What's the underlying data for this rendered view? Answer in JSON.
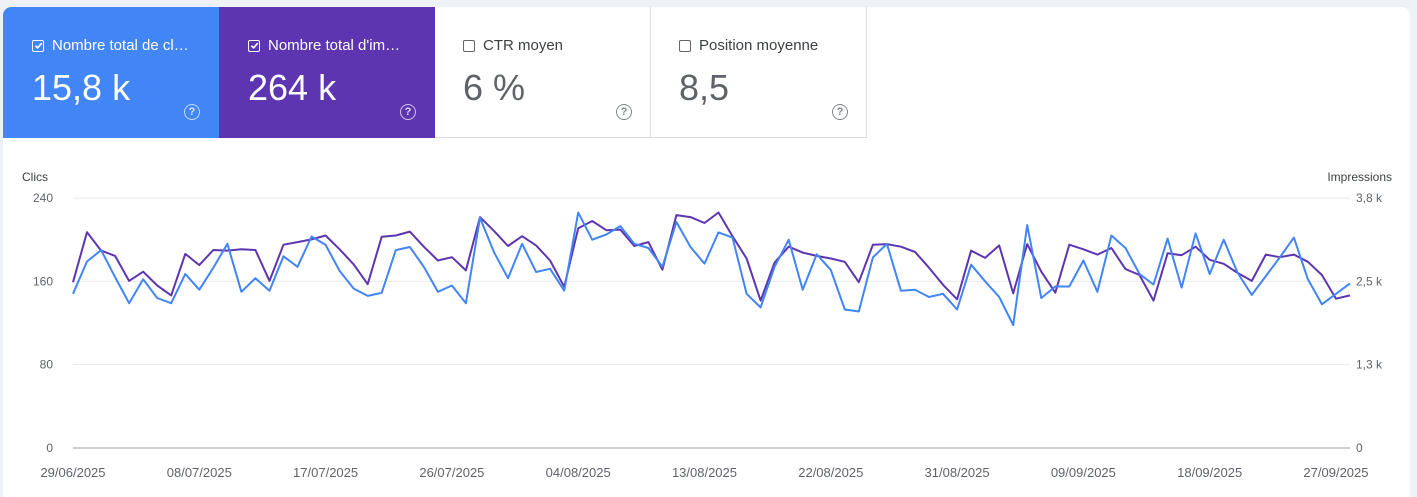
{
  "metrics": [
    {
      "label": "Nombre total de clics",
      "value": "15,8 k",
      "checked": true,
      "color": "#4285f4"
    },
    {
      "label": "Nombre total d'impressions",
      "value": "264 k",
      "checked": true,
      "color": "#5e35b1"
    },
    {
      "label": "CTR moyen",
      "value": "6 %",
      "checked": false
    },
    {
      "label": "Position moyenne",
      "value": "8,5",
      "checked": false
    }
  ],
  "help_glyph": "?",
  "chart_data": {
    "type": "line",
    "left_axis_title": "Clics",
    "right_axis_title": "Impressions",
    "left_ticks": [
      "0",
      "80",
      "160",
      "240"
    ],
    "right_ticks": [
      "0",
      "1,3 k",
      "2,5 k",
      "3,8 k"
    ],
    "ylim_left": [
      0,
      240
    ],
    "ylim_right": [
      0,
      3800
    ],
    "x_labels": [
      "29/06/2025",
      "08/07/2025",
      "17/07/2025",
      "26/07/2025",
      "04/08/2025",
      "13/08/2025",
      "22/08/2025",
      "31/08/2025",
      "09/09/2025",
      "18/09/2025",
      "27/09/2025"
    ],
    "x_start": "2025-06-29",
    "x_end": "2025-09-28",
    "series": [
      {
        "metric": "clics",
        "axis": "left",
        "color": "#4285f4",
        "values": [
          148,
          179,
          190,
          164,
          139,
          162,
          144,
          139,
          167,
          152,
          173,
          196,
          150,
          163,
          151,
          184,
          174,
          203,
          195,
          170,
          153,
          146,
          149,
          190,
          193,
          174,
          150,
          156,
          139,
          221,
          188,
          163,
          196,
          169,
          172,
          151,
          226,
          200,
          205,
          213,
          196,
          192,
          174,
          217,
          193,
          177,
          207,
          202,
          148,
          135,
          174,
          200,
          152,
          186,
          171,
          133,
          131,
          183,
          196,
          151,
          152,
          145,
          148,
          133,
          176,
          160,
          145,
          118,
          214,
          144,
          155,
          155,
          180,
          150,
          204,
          192,
          167,
          157,
          201,
          154,
          206,
          167,
          200,
          168,
          147,
          165,
          183,
          202,
          162,
          138,
          148,
          158
        ]
      },
      {
        "metric": "impressions",
        "axis": "right",
        "color": "#5e35b1",
        "values": [
          2520,
          3280,
          3000,
          2920,
          2540,
          2680,
          2470,
          2320,
          2950,
          2780,
          3010,
          3000,
          3020,
          3010,
          2540,
          3090,
          3130,
          3170,
          3230,
          3020,
          2790,
          2490,
          3210,
          3230,
          3290,
          3060,
          2850,
          2900,
          2700,
          3510,
          3300,
          3070,
          3220,
          3080,
          2850,
          2450,
          3340,
          3450,
          3310,
          3320,
          3070,
          3130,
          2710,
          3540,
          3510,
          3420,
          3580,
          3220,
          2880,
          2240,
          2820,
          3060,
          2970,
          2920,
          2880,
          2830,
          2520,
          3090,
          3100,
          3060,
          2980,
          2740,
          2480,
          2260,
          3000,
          2890,
          3080,
          2350,
          3100,
          2680,
          2360,
          3090,
          3020,
          2940,
          3040,
          2720,
          2630,
          2240,
          2960,
          2930,
          3060,
          2860,
          2800,
          2660,
          2540,
          2940,
          2900,
          2940,
          2830,
          2630,
          2270,
          2320
        ]
      }
    ]
  }
}
